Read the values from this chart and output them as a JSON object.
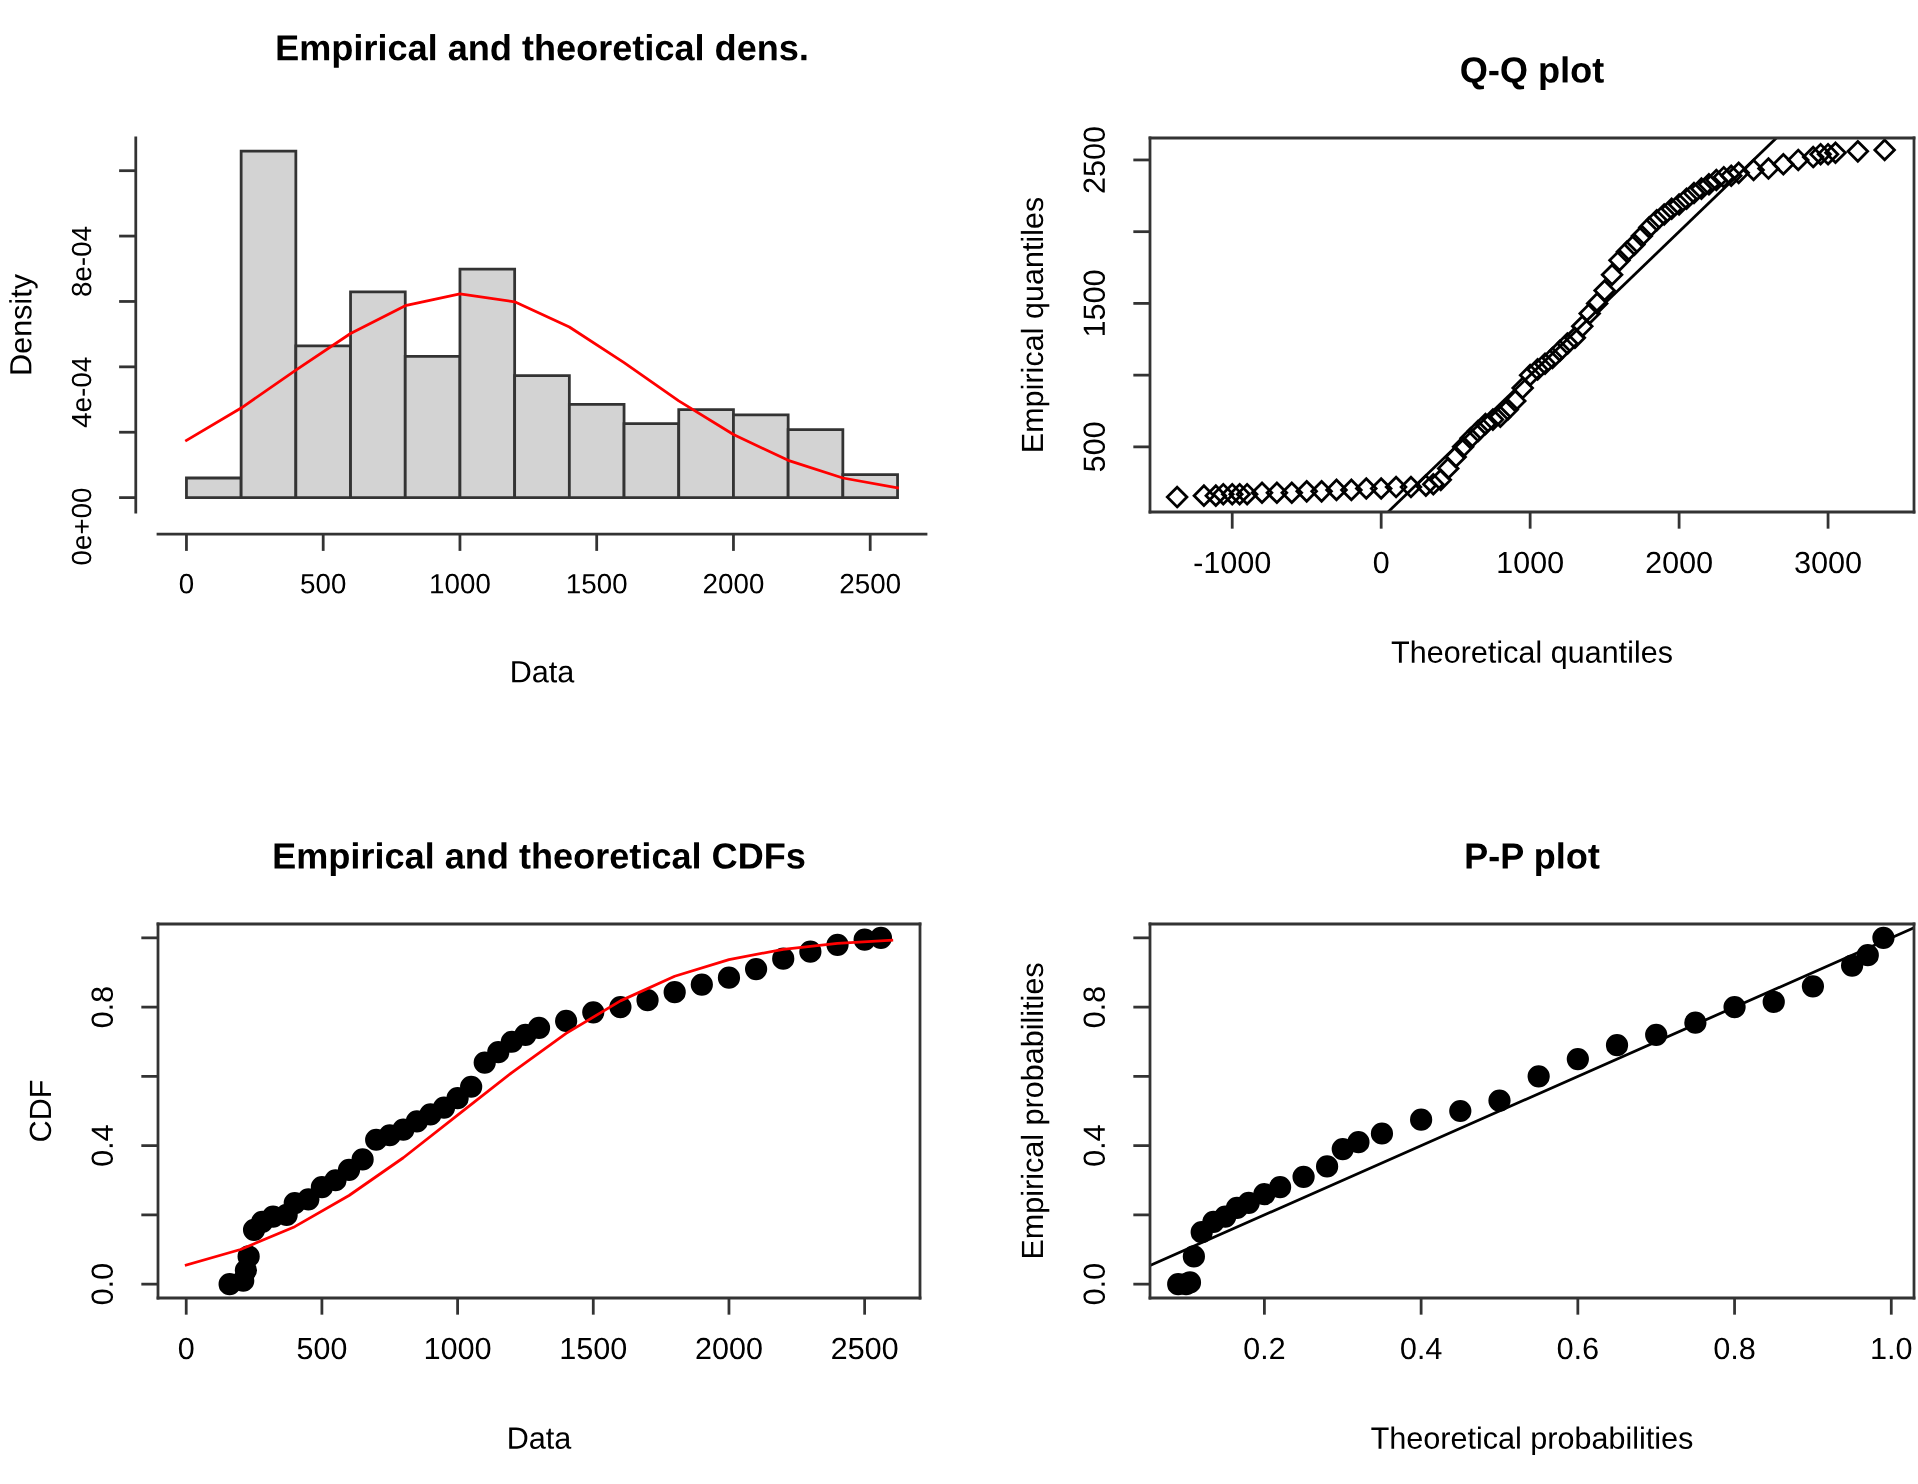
{
  "chart_data": [
    {
      "type": "histogram",
      "title": "Empirical and theoretical dens.",
      "xlabel": "Data",
      "ylabel": "Density",
      "grid": false,
      "legend": false,
      "bins": [
        0,
        200,
        400,
        600,
        800,
        1000,
        1200,
        1400,
        1600,
        1800,
        2000,
        2200,
        2400,
        2600
      ],
      "values": [
        6e-05,
        0.00106,
        0.000464,
        0.000629,
        0.000432,
        0.000699,
        0.000373,
        0.000285,
        0.000226,
        0.000269,
        0.000253,
        0.000208,
        7e-05
      ],
      "color": "#d3d3d3",
      "series": [
        {
          "type": "line",
          "color": "#ff0000",
          "x": [
            0,
            200,
            400,
            600,
            800,
            1000,
            1200,
            1400,
            1600,
            1800,
            2000,
            2200,
            2400,
            2600
          ],
          "values": [
            0.000175,
            0.000274,
            0.00039,
            0.000502,
            0.000587,
            0.000623,
            0.000599,
            0.000522,
            0.000413,
            0.000296,
            0.000193,
            0.000114,
            6e-05,
            3e-05
          ]
        }
      ],
      "xlim": [
        -104,
        2704
      ],
      "xticks": [
        0,
        500,
        1000,
        1500,
        2000,
        2500
      ],
      "ylim": [
        -4.4e-05,
        0.0011
      ],
      "yticks": [
        {
          "value": 0,
          "label": "0e+00"
        },
        {
          "value": 0.0002,
          "label": null
        },
        {
          "value": 0.0004,
          "label": "4e-04"
        },
        {
          "value": 0.0006,
          "label": null
        },
        {
          "value": 0.0008,
          "label": "8e-04"
        },
        {
          "value": 0.001,
          "label": null
        }
      ]
    },
    {
      "type": "scatter",
      "title": "Q-Q plot",
      "xlabel": "Theoretical quantiles",
      "ylabel": "Empirical quantiles",
      "grid": false,
      "legend": false,
      "series": [
        {
          "type": "scatter",
          "marker": "diamond",
          "color": "#000000",
          "x": [
            -1370,
            -1190,
            -1110,
            -1060,
            -1000,
            -950,
            -900,
            -800,
            -700,
            -600,
            -500,
            -400,
            -300,
            -200,
            -100,
            0,
            100,
            200,
            300,
            350,
            400,
            450,
            500,
            550,
            600,
            650,
            700,
            750,
            800,
            850,
            900,
            950,
            1000,
            1050,
            1100,
            1150,
            1200,
            1250,
            1300,
            1350,
            1400,
            1450,
            1500,
            1550,
            1600,
            1650,
            1700,
            1750,
            1800,
            1850,
            1900,
            1950,
            2000,
            2050,
            2100,
            2150,
            2200,
            2250,
            2300,
            2350,
            2400,
            2500,
            2600,
            2700,
            2800,
            2900,
            2950,
            3000,
            3050,
            3200,
            3380
          ],
          "values": [
            150,
            160,
            160,
            170,
            170,
            170,
            170,
            180,
            180,
            180,
            190,
            190,
            200,
            200,
            210,
            210,
            220,
            220,
            230,
            240,
            270,
            350,
            430,
            500,
            560,
            610,
            660,
            690,
            710,
            760,
            820,
            910,
            1000,
            1040,
            1080,
            1120,
            1170,
            1220,
            1260,
            1340,
            1430,
            1500,
            1590,
            1700,
            1800,
            1860,
            1910,
            1970,
            2030,
            2080,
            2120,
            2160,
            2190,
            2230,
            2270,
            2300,
            2330,
            2360,
            2380,
            2390,
            2410,
            2430,
            2440,
            2470,
            2500,
            2520,
            2540,
            2540,
            2550,
            2560,
            2570
          ]
        },
        {
          "type": "line",
          "color": "#000000",
          "x": [
            50,
            2650
          ],
          "values": [
            50,
            2650
          ]
        }
      ],
      "xlim": [
        -1552,
        3577
      ],
      "xticks": [
        -1000,
        0,
        1000,
        2000,
        3000
      ],
      "ylim": [
        46,
        2653
      ],
      "yticks": [
        {
          "value": 500,
          "label": "500"
        },
        {
          "value": 1000,
          "label": null
        },
        {
          "value": 1500,
          "label": "1500"
        },
        {
          "value": 2000,
          "label": null
        },
        {
          "value": 2500,
          "label": "2500"
        }
      ]
    },
    {
      "type": "scatter",
      "title": "Empirical and theoretical CDFs",
      "xlabel": "Data",
      "ylabel": "CDF",
      "grid": false,
      "legend": false,
      "series": [
        {
          "type": "scatter",
          "marker": "circle",
          "color": "#000000",
          "x": [
            160,
            210,
            220,
            230,
            250,
            280,
            320,
            370,
            400,
            450,
            500,
            550,
            600,
            650,
            700,
            750,
            800,
            850,
            900,
            950,
            1000,
            1050,
            1100,
            1150,
            1200,
            1250,
            1300,
            1400,
            1500,
            1600,
            1700,
            1800,
            1900,
            2000,
            2100,
            2200,
            2300,
            2400,
            2500,
            2560
          ],
          "values": [
            0.0,
            0.01,
            0.04,
            0.08,
            0.157,
            0.18,
            0.195,
            0.2,
            0.234,
            0.245,
            0.28,
            0.3,
            0.33,
            0.36,
            0.417,
            0.43,
            0.446,
            0.47,
            0.49,
            0.51,
            0.537,
            0.57,
            0.64,
            0.67,
            0.7,
            0.72,
            0.74,
            0.76,
            0.785,
            0.8,
            0.82,
            0.843,
            0.865,
            0.885,
            0.91,
            0.94,
            0.96,
            0.98,
            0.995,
            1.0
          ]
        },
        {
          "type": "line",
          "color": "#ff0000",
          "x": [
            0,
            200,
            400,
            600,
            800,
            1000,
            1200,
            1400,
            1600,
            1800,
            2000,
            2200,
            2400,
            2600
          ],
          "values": [
            0.055,
            0.1,
            0.166,
            0.256,
            0.365,
            0.488,
            0.611,
            0.724,
            0.818,
            0.889,
            0.937,
            0.967,
            0.984,
            0.993
          ]
        }
      ],
      "xlim": [
        -104,
        2704
      ],
      "xticks": [
        0,
        500,
        1000,
        1500,
        2000,
        2500
      ],
      "ylim": [
        -0.04,
        1.04
      ],
      "yticks": [
        {
          "value": 0,
          "label": "0.0"
        },
        {
          "value": 0.2,
          "label": null
        },
        {
          "value": 0.4,
          "label": "0.4"
        },
        {
          "value": 0.6,
          "label": null
        },
        {
          "value": 0.8,
          "label": "0.8"
        },
        {
          "value": 1.0,
          "label": null
        }
      ]
    },
    {
      "type": "scatter",
      "title": "P-P plot",
      "xlabel": "Theoretical probabilities",
      "ylabel": "Empirical probabilities",
      "grid": false,
      "legend": false,
      "series": [
        {
          "type": "scatter",
          "marker": "circle",
          "color": "#000000",
          "x": [
            0.09,
            0.1,
            0.105,
            0.11,
            0.12,
            0.135,
            0.15,
            0.165,
            0.18,
            0.2,
            0.22,
            0.25,
            0.28,
            0.3,
            0.32,
            0.35,
            0.4,
            0.45,
            0.5,
            0.55,
            0.6,
            0.65,
            0.7,
            0.75,
            0.8,
            0.85,
            0.9,
            0.95,
            0.97,
            0.99
          ],
          "values": [
            0.0,
            0.0,
            0.005,
            0.08,
            0.15,
            0.18,
            0.195,
            0.22,
            0.235,
            0.26,
            0.28,
            0.31,
            0.34,
            0.39,
            0.41,
            0.435,
            0.475,
            0.5,
            0.53,
            0.6,
            0.65,
            0.69,
            0.72,
            0.755,
            0.8,
            0.815,
            0.86,
            0.92,
            0.95,
            1.0
          ]
        },
        {
          "type": "line",
          "color": "#000000",
          "x": [
            0.054,
            1.029
          ],
          "values": [
            0.054,
            1.029
          ]
        }
      ],
      "xlim": [
        0.054,
        1.029
      ],
      "xticks": [
        {
          "value": 0.2,
          "label": "0.2"
        },
        {
          "value": 0.4,
          "label": "0.4"
        },
        {
          "value": 0.6,
          "label": "0.6"
        },
        {
          "value": 0.8,
          "label": "0.8"
        },
        {
          "value": 1.0,
          "label": "1.0"
        }
      ],
      "ylim": [
        -0.04,
        1.04
      ],
      "yticks": [
        {
          "value": 0,
          "label": "0.0"
        },
        {
          "value": 0.2,
          "label": null
        },
        {
          "value": 0.4,
          "label": "0.4"
        },
        {
          "value": 0.6,
          "label": null
        },
        {
          "value": 0.8,
          "label": "0.8"
        },
        {
          "value": 1.0,
          "label": null
        }
      ]
    }
  ]
}
